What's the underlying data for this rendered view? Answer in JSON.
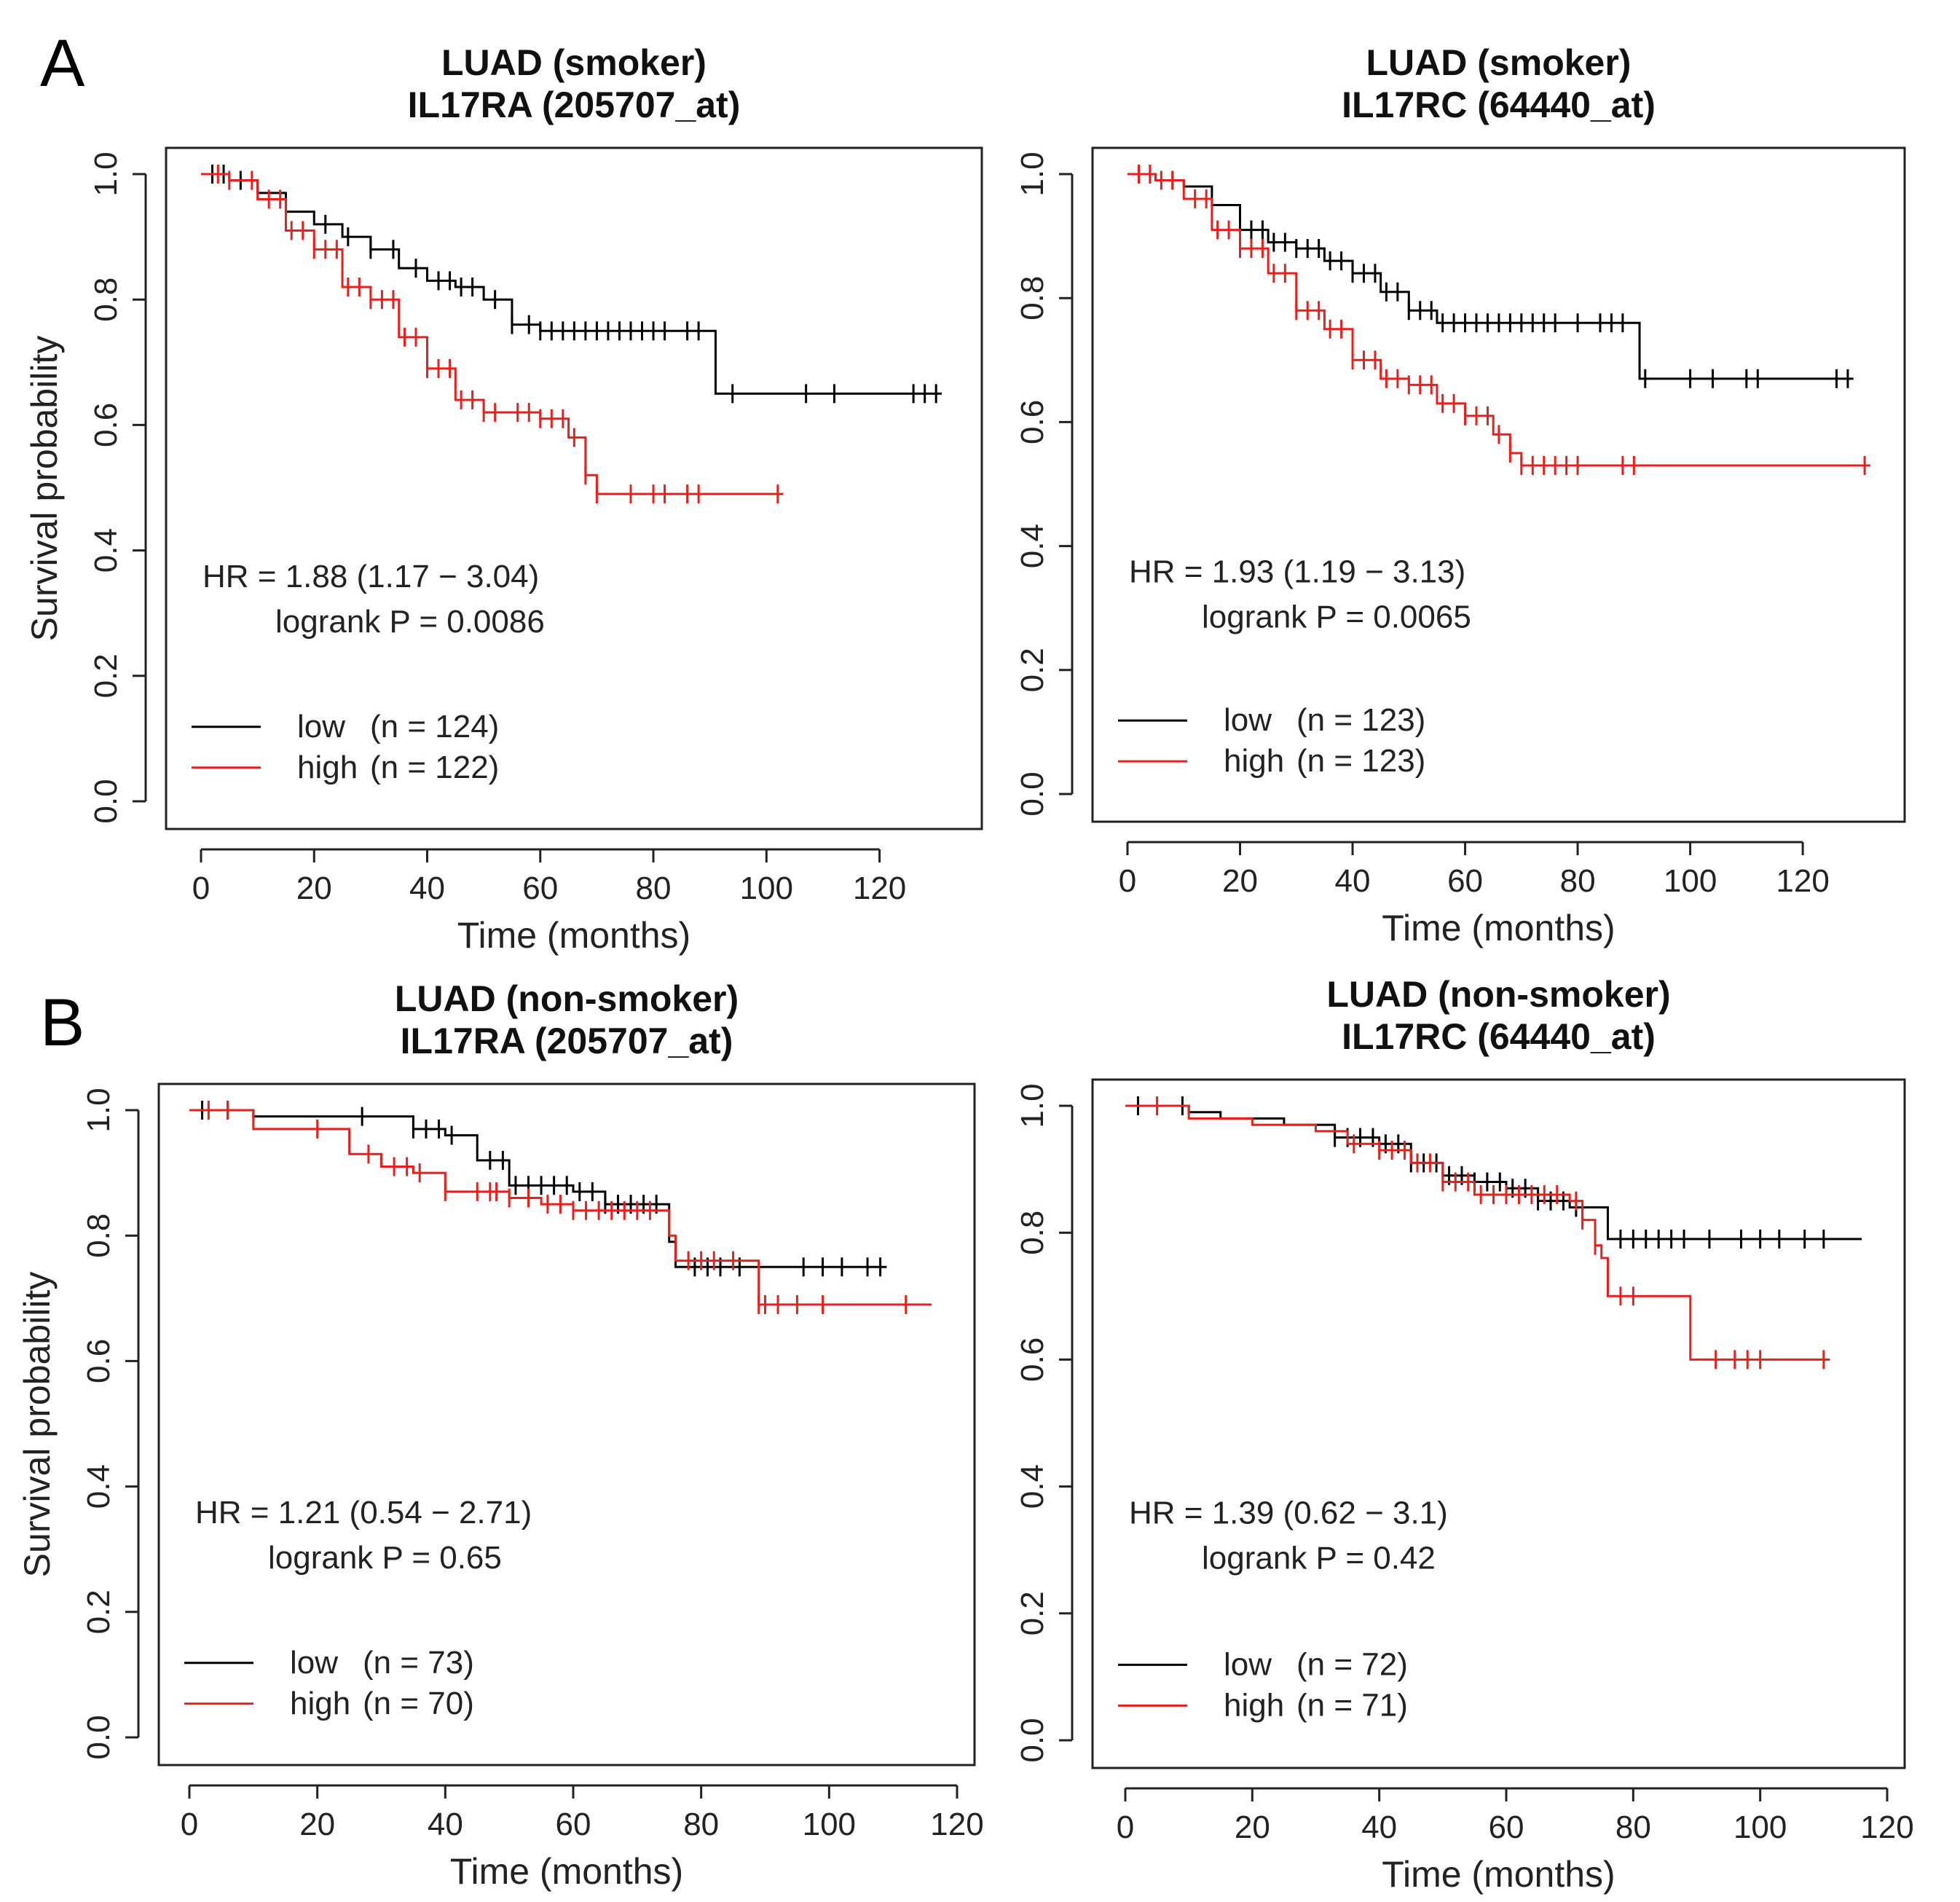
{
  "figure": {
    "panel_labels": [
      "A",
      "B"
    ]
  },
  "chart_data": [
    {
      "type": "line",
      "panel": "A",
      "title": "LUAD (smoker)",
      "subtitle": "IL17RA (205707_at)",
      "xlabel": "Time (months)",
      "ylabel": "Survival probability",
      "xlim": [
        0,
        135
      ],
      "ylim": [
        0,
        1.0
      ],
      "xticks": [
        0,
        20,
        40,
        60,
        80,
        100,
        120
      ],
      "yticks": [
        0.0,
        0.2,
        0.4,
        0.6,
        0.8,
        1.0
      ],
      "hr_text": "HR = 1.88 (1.17 − 3.04)",
      "logrank_text": "logrank P = 0.0086",
      "legend": [
        {
          "name": "low",
          "n": "(n = 124)",
          "color": "#000000"
        },
        {
          "name": "high",
          "n": "(n = 122)",
          "color": "#e8201c"
        }
      ],
      "series": [
        {
          "name": "low",
          "color": "#000000",
          "x": [
            0,
            5,
            10,
            15,
            20,
            25,
            30,
            35,
            40,
            45,
            50,
            55,
            60,
            70,
            80,
            90,
            91,
            131
          ],
          "y": [
            1.0,
            0.99,
            0.97,
            0.94,
            0.92,
            0.9,
            0.88,
            0.85,
            0.83,
            0.82,
            0.8,
            0.76,
            0.75,
            0.75,
            0.75,
            0.75,
            0.65,
            0.65
          ],
          "censor_x": [
            2,
            4,
            7,
            22,
            26,
            30,
            34,
            38,
            42,
            44,
            46,
            48,
            52,
            55,
            58,
            60,
            62,
            64,
            66,
            68,
            70,
            72,
            74,
            76,
            78,
            80,
            82,
            86,
            88,
            94,
            107,
            112,
            126,
            128,
            130
          ]
        },
        {
          "name": "high",
          "color": "#e8201c",
          "x": [
            0,
            5,
            10,
            15,
            20,
            25,
            30,
            35,
            40,
            45,
            50,
            55,
            60,
            65,
            68,
            70,
            80,
            103
          ],
          "y": [
            1.0,
            0.99,
            0.96,
            0.91,
            0.88,
            0.82,
            0.8,
            0.74,
            0.69,
            0.64,
            0.62,
            0.62,
            0.61,
            0.58,
            0.52,
            0.49,
            0.49,
            0.49
          ],
          "censor_x": [
            3,
            5,
            9,
            12,
            14,
            16,
            18,
            20,
            22,
            24,
            26,
            28,
            30,
            32,
            34,
            36,
            38,
            40,
            42,
            44,
            46,
            48,
            50,
            52,
            56,
            58,
            60,
            62,
            64,
            66,
            68,
            70,
            76,
            80,
            82,
            86,
            88,
            102
          ]
        }
      ]
    },
    {
      "type": "line",
      "panel": "A",
      "title": "LUAD (smoker)",
      "subtitle": "IL17RC (64440_at)",
      "xlabel": "Time (months)",
      "ylabel": "",
      "xlim": [
        0,
        135
      ],
      "ylim": [
        0,
        1.0
      ],
      "xticks": [
        0,
        20,
        40,
        60,
        80,
        100,
        120
      ],
      "yticks": [
        0.0,
        0.2,
        0.4,
        0.6,
        0.8,
        1.0
      ],
      "hr_text": "HR = 1.93 (1.19 − 3.13)",
      "logrank_text": "logrank P = 0.0065",
      "legend": [
        {
          "name": "low",
          "n": "(n = 123)",
          "color": "#000000"
        },
        {
          "name": "high",
          "n": "(n = 123)",
          "color": "#e8201c"
        }
      ],
      "series": [
        {
          "name": "low",
          "color": "#000000",
          "x": [
            0,
            5,
            10,
            15,
            20,
            25,
            30,
            35,
            40,
            45,
            50,
            55,
            60,
            70,
            80,
            90,
            91,
            129
          ],
          "y": [
            1.0,
            0.99,
            0.98,
            0.95,
            0.91,
            0.89,
            0.88,
            0.86,
            0.84,
            0.81,
            0.78,
            0.76,
            0.76,
            0.76,
            0.76,
            0.76,
            0.67,
            0.67
          ],
          "censor_x": [
            2,
            4,
            8,
            20,
            22,
            24,
            26,
            28,
            30,
            32,
            34,
            36,
            38,
            40,
            42,
            44,
            46,
            48,
            50,
            52,
            54,
            56,
            58,
            60,
            62,
            64,
            66,
            68,
            70,
            72,
            74,
            76,
            80,
            84,
            86,
            88,
            92,
            100,
            104,
            110,
            112,
            126,
            128
          ]
        },
        {
          "name": "high",
          "color": "#e8201c",
          "x": [
            0,
            5,
            10,
            15,
            20,
            25,
            30,
            35,
            40,
            45,
            50,
            55,
            60,
            65,
            68,
            70,
            80,
            132
          ],
          "y": [
            1.0,
            0.99,
            0.96,
            0.91,
            0.88,
            0.84,
            0.78,
            0.75,
            0.7,
            0.67,
            0.66,
            0.63,
            0.61,
            0.58,
            0.55,
            0.53,
            0.53,
            0.53
          ],
          "censor_x": [
            2,
            4,
            6,
            8,
            12,
            14,
            16,
            18,
            20,
            22,
            24,
            26,
            28,
            30,
            32,
            34,
            36,
            38,
            40,
            42,
            44,
            46,
            48,
            50,
            52,
            54,
            56,
            58,
            60,
            62,
            64,
            66,
            68,
            70,
            72,
            74,
            76,
            78,
            80,
            88,
            90,
            131
          ]
        }
      ]
    },
    {
      "type": "line",
      "panel": "B",
      "title": "LUAD (non-smoker)",
      "subtitle": "IL17RA (205707_at)",
      "xlabel": "Time (months)",
      "ylabel": "Survival probability",
      "xlim": [
        0,
        120
      ],
      "ylim": [
        0,
        1.0
      ],
      "xticks": [
        0,
        20,
        40,
        60,
        80,
        100,
        120
      ],
      "yticks": [
        0.0,
        0.2,
        0.4,
        0.6,
        0.8,
        1.0
      ],
      "hr_text": "HR = 1.21 (0.54 − 2.71)",
      "logrank_text": "logrank P = 0.65",
      "legend": [
        {
          "name": "low",
          "n": "(n = 73)",
          "color": "#000000"
        },
        {
          "name": "high",
          "n": "(n = 70)",
          "color": "#e8201c"
        }
      ],
      "series": [
        {
          "name": "low",
          "color": "#000000",
          "x": [
            0,
            10,
            15,
            30,
            35,
            40,
            45,
            50,
            55,
            60,
            65,
            70,
            75,
            76,
            90,
            109
          ],
          "y": [
            1.0,
            0.99,
            0.99,
            0.99,
            0.97,
            0.96,
            0.92,
            0.88,
            0.88,
            0.87,
            0.85,
            0.85,
            0.79,
            0.75,
            0.75,
            0.75
          ],
          "censor_x": [
            2,
            6,
            27,
            35,
            37,
            39,
            41,
            47,
            49,
            51,
            53,
            55,
            57,
            59,
            61,
            63,
            65,
            67,
            69,
            71,
            73,
            79,
            81,
            83,
            86,
            96,
            99,
            102,
            106,
            108
          ]
        },
        {
          "name": "high",
          "color": "#e8201c",
          "x": [
            0,
            10,
            20,
            25,
            30,
            35,
            40,
            45,
            50,
            55,
            60,
            65,
            70,
            75,
            76,
            80,
            88,
            89,
            116
          ],
          "y": [
            1.0,
            0.97,
            0.97,
            0.93,
            0.91,
            0.9,
            0.87,
            0.87,
            0.86,
            0.85,
            0.84,
            0.84,
            0.84,
            0.8,
            0.76,
            0.76,
            0.76,
            0.69,
            0.69
          ],
          "censor_x": [
            3,
            6,
            20,
            28,
            32,
            34,
            36,
            40,
            45,
            47,
            48,
            50,
            53,
            56,
            58,
            60,
            62,
            64,
            66,
            68,
            70,
            72,
            78,
            80,
            82,
            85,
            89,
            90,
            92,
            95,
            99,
            112
          ]
        }
      ]
    },
    {
      "type": "line",
      "panel": "B",
      "title": "LUAD (non-smoker)",
      "subtitle": "IL17RC (64440_at)",
      "xlabel": "Time (months)",
      "ylabel": "",
      "xlim": [
        0,
        120
      ],
      "ylim": [
        0,
        1.0
      ],
      "xticks": [
        0,
        20,
        40,
        60,
        80,
        100,
        120
      ],
      "yticks": [
        0.0,
        0.2,
        0.4,
        0.6,
        0.8,
        1.0
      ],
      "hr_text": "HR = 1.39 (0.62 − 3.1)",
      "logrank_text": "logrank P = 0.42",
      "legend": [
        {
          "name": "low",
          "n": "(n = 72)",
          "color": "#000000"
        },
        {
          "name": "high",
          "n": "(n = 71)",
          "color": "#e8201c"
        }
      ],
      "series": [
        {
          "name": "low",
          "color": "#000000",
          "x": [
            0,
            10,
            15,
            25,
            33,
            40,
            45,
            50,
            55,
            60,
            65,
            70,
            75,
            76,
            116
          ],
          "y": [
            1.0,
            0.99,
            0.98,
            0.97,
            0.95,
            0.94,
            0.91,
            0.89,
            0.88,
            0.87,
            0.85,
            0.84,
            0.84,
            0.79,
            0.79
          ],
          "censor_x": [
            2,
            9,
            33,
            35,
            37,
            39,
            41,
            43,
            45,
            47,
            49,
            51,
            53,
            55,
            57,
            59,
            61,
            63,
            65,
            67,
            69,
            71,
            78,
            80,
            82,
            84,
            86,
            88,
            92,
            97,
            100,
            103,
            107,
            110
          ]
        },
        {
          "name": "high",
          "color": "#e8201c",
          "x": [
            0,
            10,
            20,
            30,
            35,
            40,
            45,
            50,
            55,
            60,
            65,
            70,
            72,
            74,
            75,
            76,
            80,
            88,
            89,
            111
          ],
          "y": [
            1.0,
            0.98,
            0.97,
            0.96,
            0.94,
            0.93,
            0.91,
            0.88,
            0.86,
            0.86,
            0.86,
            0.85,
            0.82,
            0.78,
            0.76,
            0.7,
            0.7,
            0.7,
            0.6,
            0.6
          ],
          "censor_x": [
            5,
            36,
            40,
            42,
            44,
            46,
            48,
            50,
            52,
            54,
            56,
            58,
            60,
            62,
            64,
            66,
            68,
            71,
            72,
            74,
            78,
            80,
            93,
            96,
            98,
            100,
            110
          ]
        }
      ]
    }
  ]
}
